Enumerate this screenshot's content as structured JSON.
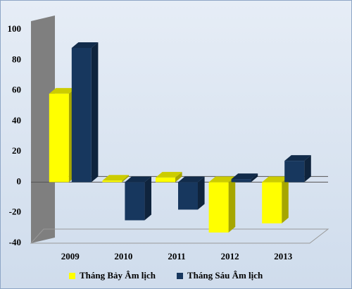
{
  "chart_data": {
    "type": "bar3d",
    "categories": [
      "2009",
      "2010",
      "2011",
      "2012",
      "2013"
    ],
    "series": [
      {
        "name": "Tháng Bảy Âm lịch",
        "color": "#ffff00",
        "values": [
          58,
          1,
          3,
          -33,
          -27
        ]
      },
      {
        "name": "Tháng Sáu Âm lịch",
        "color": "#17375e",
        "values": [
          88,
          -25,
          -18,
          2,
          14
        ]
      }
    ],
    "ylim": [
      -40,
      100
    ],
    "yticks": [
      -40,
      -20,
      0,
      20,
      40,
      60,
      80,
      100
    ]
  }
}
